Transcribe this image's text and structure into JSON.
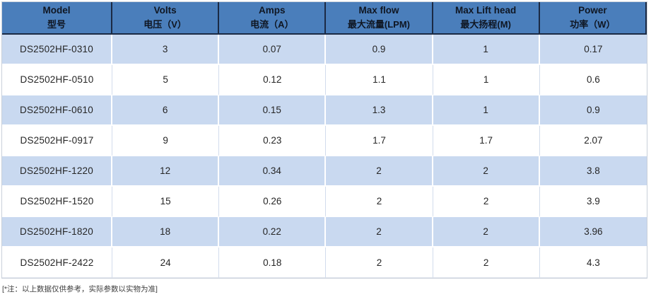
{
  "table": {
    "columns": [
      {
        "en": "Model",
        "zh": "型号"
      },
      {
        "en": "Volts",
        "zh": "电压（V）"
      },
      {
        "en": "Amps",
        "zh": "电流（A）"
      },
      {
        "en": "Max flow",
        "zh": "最大流量(LPM)"
      },
      {
        "en": "Max Lift head",
        "zh": "最大扬程(M)"
      },
      {
        "en": "Power",
        "zh": "功率（W）"
      }
    ],
    "rows": [
      [
        "DS2502HF-0310",
        "3",
        "0.07",
        "0.9",
        "1",
        "0.17"
      ],
      [
        "DS2502HF-0510",
        "5",
        "0.12",
        "1.1",
        "1",
        "0.6"
      ],
      [
        "DS2502HF-0610",
        "6",
        "0.15",
        "1.3",
        "1",
        "0.9"
      ],
      [
        "DS2502HF-0917",
        "9",
        "0.23",
        "1.7",
        "1.7",
        "2.07"
      ],
      [
        "DS2502HF-1220",
        "12",
        "0.34",
        "2",
        "2",
        "3.8"
      ],
      [
        "DS2502HF-1520",
        "15",
        "0.26",
        "2",
        "2",
        "3.9"
      ],
      [
        "DS2502HF-1820",
        "18",
        "0.22",
        "2",
        "2",
        "3.96"
      ],
      [
        "DS2502HF-2422",
        "24",
        "0.18",
        "2",
        "2",
        "4.3"
      ]
    ]
  },
  "note": "[*注：以上数据仅供参考，实际参数以实物为准]",
  "colors": {
    "header_bg": "#4a7ebb",
    "header_border": "#1b2a44",
    "row_alt_bg": "#c9d9f0",
    "row_bg": "#ffffff",
    "text": "#262626"
  }
}
